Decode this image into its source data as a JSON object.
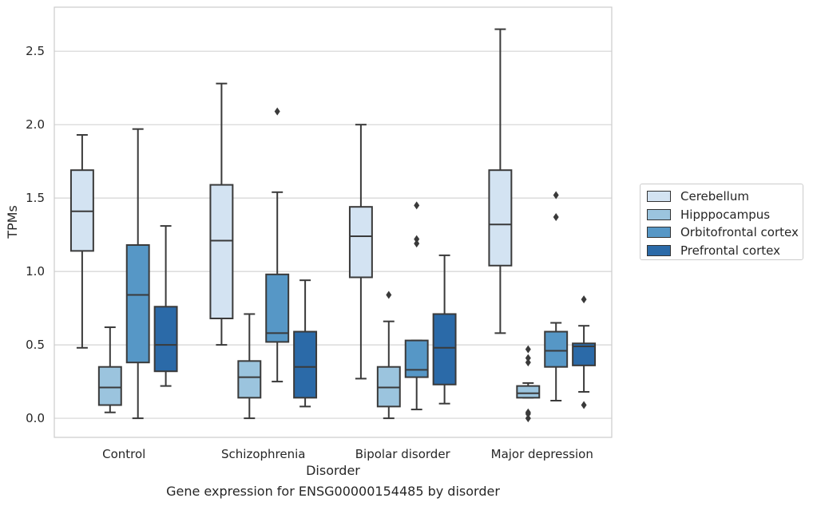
{
  "caption": "Gene expression for ENSG00000154485 by disorder",
  "chart_data": {
    "type": "box",
    "xlabel": "Disorder",
    "ylabel": "TPMs",
    "ylim": [
      -0.13,
      2.8
    ],
    "yticks": [
      "0.0",
      "0.5",
      "1.0",
      "1.5",
      "2.0",
      "2.5"
    ],
    "ytick_values": [
      0.0,
      0.5,
      1.0,
      1.5,
      2.0,
      2.5
    ],
    "grid": "horizontal",
    "legend_position": "right",
    "categories": [
      "Control",
      "Schizophrenia",
      "Bipolar disorder",
      "Major depression"
    ],
    "series": [
      {
        "name": "Cerebellum",
        "color": "#d3e3f2",
        "boxes": [
          {
            "whisker_low": 0.48,
            "q1": 1.14,
            "median": 1.41,
            "q3": 1.69,
            "whisker_high": 1.93,
            "outliers": []
          },
          {
            "whisker_low": 0.5,
            "q1": 0.68,
            "median": 1.21,
            "q3": 1.59,
            "whisker_high": 2.28,
            "outliers": []
          },
          {
            "whisker_low": 0.27,
            "q1": 0.96,
            "median": 1.24,
            "q3": 1.44,
            "whisker_high": 2.0,
            "outliers": []
          },
          {
            "whisker_low": 0.58,
            "q1": 1.04,
            "median": 1.32,
            "q3": 1.69,
            "whisker_high": 2.65,
            "outliers": []
          }
        ]
      },
      {
        "name": "Hipppocampus",
        "color": "#9bc4de",
        "boxes": [
          {
            "whisker_low": 0.04,
            "q1": 0.09,
            "median": 0.21,
            "q3": 0.35,
            "whisker_high": 0.62,
            "outliers": []
          },
          {
            "whisker_low": 0.0,
            "q1": 0.14,
            "median": 0.28,
            "q3": 0.39,
            "whisker_high": 0.71,
            "outliers": []
          },
          {
            "whisker_low": 0.0,
            "q1": 0.08,
            "median": 0.21,
            "q3": 0.35,
            "whisker_high": 0.66,
            "outliers": [
              0.84
            ]
          },
          {
            "whisker_low": 0.14,
            "q1": 0.14,
            "median": 0.17,
            "q3": 0.22,
            "whisker_high": 0.24,
            "outliers": [
              0.04,
              0.0,
              0.03,
              0.38,
              0.41,
              0.47
            ]
          }
        ]
      },
      {
        "name": "Orbitofrontal cortex",
        "color": "#5697c6",
        "boxes": [
          {
            "whisker_low": 0.0,
            "q1": 0.38,
            "median": 0.84,
            "q3": 1.18,
            "whisker_high": 1.97,
            "outliers": []
          },
          {
            "whisker_low": 0.25,
            "q1": 0.52,
            "median": 0.58,
            "q3": 0.98,
            "whisker_high": 1.54,
            "outliers": [
              2.09
            ]
          },
          {
            "whisker_low": 0.06,
            "q1": 0.28,
            "median": 0.33,
            "q3": 0.53,
            "whisker_high": 0.53,
            "outliers": [
              1.19,
              1.22,
              1.45
            ]
          },
          {
            "whisker_low": 0.12,
            "q1": 0.35,
            "median": 0.46,
            "q3": 0.59,
            "whisker_high": 0.65,
            "outliers": [
              1.37,
              1.52
            ]
          }
        ]
      },
      {
        "name": "Prefrontal cortex",
        "color": "#2b6aa8",
        "boxes": [
          {
            "whisker_low": 0.22,
            "q1": 0.32,
            "median": 0.5,
            "q3": 0.76,
            "whisker_high": 1.31,
            "outliers": []
          },
          {
            "whisker_low": 0.08,
            "q1": 0.14,
            "median": 0.35,
            "q3": 0.59,
            "whisker_high": 0.94,
            "outliers": []
          },
          {
            "whisker_low": 0.1,
            "q1": 0.23,
            "median": 0.48,
            "q3": 0.71,
            "whisker_high": 1.11,
            "outliers": []
          },
          {
            "whisker_low": 0.18,
            "q1": 0.36,
            "median": 0.49,
            "q3": 0.51,
            "whisker_high": 0.63,
            "outliers": [
              0.09,
              0.81
            ]
          }
        ]
      }
    ]
  }
}
